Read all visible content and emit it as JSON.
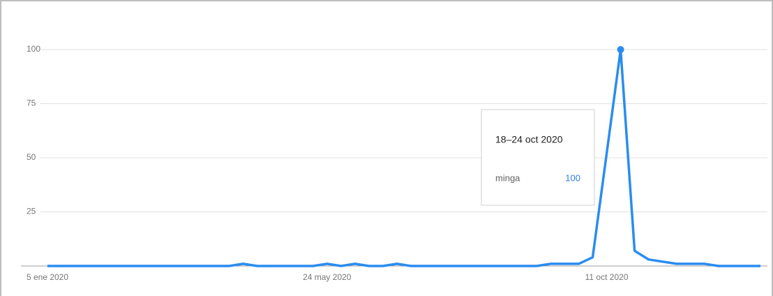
{
  "chart_data": {
    "type": "line",
    "categories": [
      "5 ene 2020",
      null,
      null,
      null,
      null,
      null,
      null,
      null,
      null,
      null,
      null,
      null,
      null,
      null,
      null,
      null,
      null,
      null,
      null,
      null,
      "24 may 2020",
      null,
      null,
      null,
      null,
      null,
      null,
      null,
      null,
      null,
      null,
      null,
      null,
      null,
      null,
      null,
      null,
      null,
      null,
      null,
      "11 oct 2020",
      null,
      null,
      null,
      null,
      null,
      null,
      null,
      null,
      null,
      null,
      null
    ],
    "series": [
      {
        "name": "minga",
        "color": "#2a8cf0",
        "values": [
          0,
          0,
          0,
          0,
          0,
          0,
          0,
          0,
          0,
          0,
          0,
          0,
          0,
          0,
          1,
          0,
          0,
          0,
          0,
          0,
          1,
          0,
          1,
          0,
          0,
          1,
          0,
          0,
          0,
          0,
          0,
          0,
          0,
          0,
          0,
          0,
          1,
          1,
          1,
          4,
          52,
          100,
          7,
          3,
          2,
          1,
          1,
          1,
          0,
          0,
          0,
          0
        ]
      }
    ],
    "ylim": [
      0,
      100
    ],
    "yticks": [
      25,
      50,
      75,
      100
    ],
    "grid": true,
    "tooltip": {
      "title": "18–24 oct 2020",
      "index": 41
    }
  }
}
